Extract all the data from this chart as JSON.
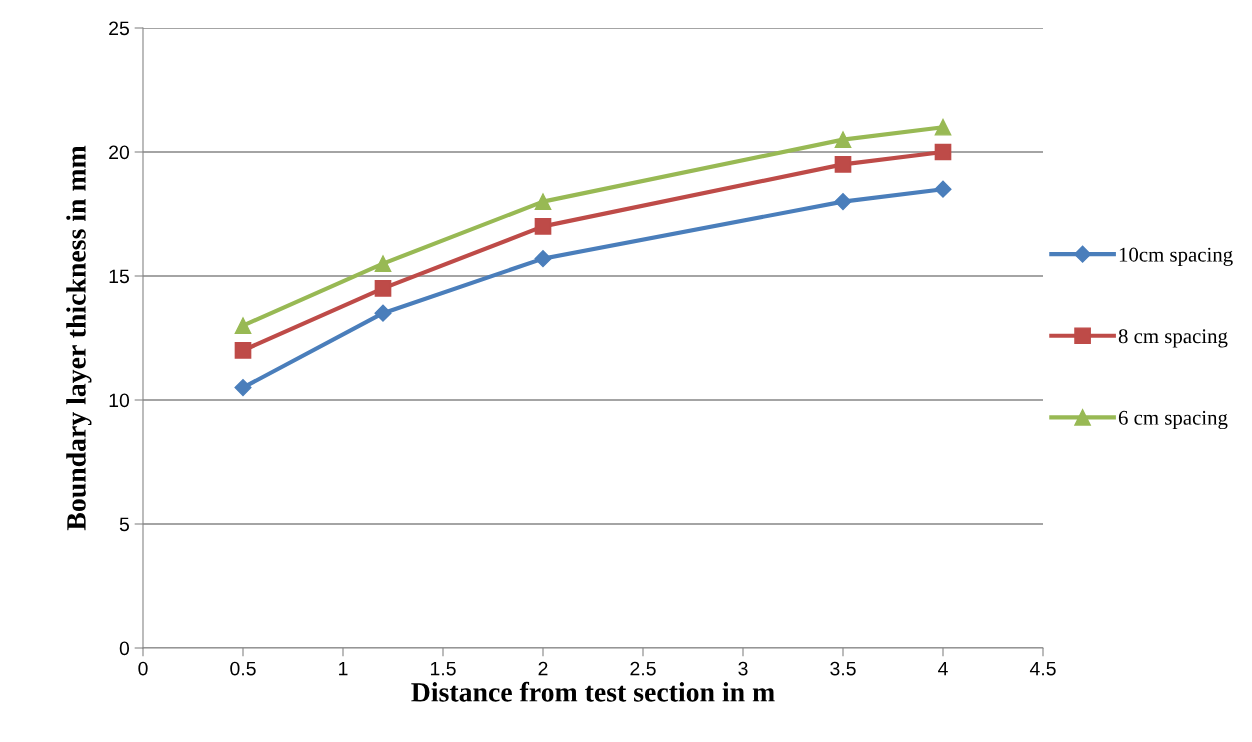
{
  "chart_data": {
    "type": "line",
    "xlabel": "Distance from test section in m",
    "ylabel": "Boundary layer thickness in mm",
    "x": [
      0.5,
      1.2,
      2,
      3.5,
      4
    ],
    "series": [
      {
        "name": "10cm spacing",
        "color": "#4a7ebb",
        "marker": "diamond",
        "values": [
          10.5,
          13.5,
          15.7,
          18,
          18.5
        ]
      },
      {
        "name": "8 cm spacing",
        "color": "#be4b48",
        "marker": "square",
        "values": [
          12,
          14.5,
          17,
          19.5,
          20
        ]
      },
      {
        "name": "6 cm spacing",
        "color": "#98b954",
        "marker": "triangle",
        "values": [
          13,
          15.5,
          18,
          20.5,
          21
        ]
      }
    ],
    "xlim": [
      0,
      4.5
    ],
    "xticks": [
      0,
      0.5,
      1,
      1.5,
      2,
      2.5,
      3,
      3.5,
      4,
      4.5
    ],
    "ylim": [
      0,
      25
    ],
    "yticks": [
      0,
      5,
      10,
      15,
      20,
      25
    ],
    "grid": "y",
    "legend": "right",
    "line_style": "solid"
  }
}
